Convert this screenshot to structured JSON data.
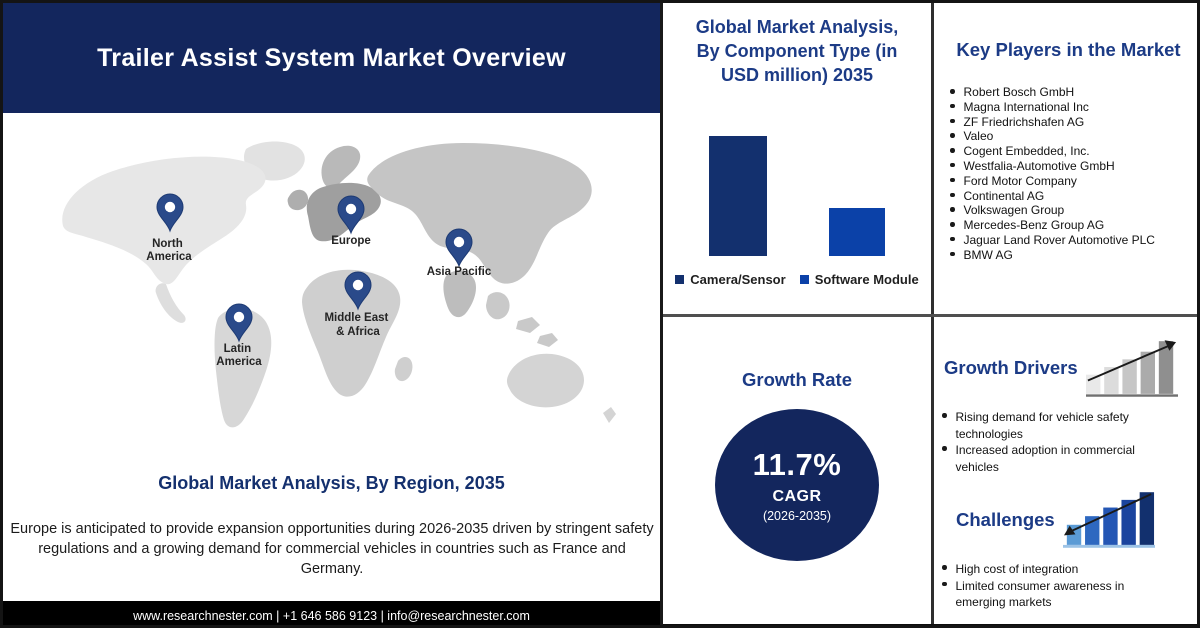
{
  "header": {
    "title": "Trailer Assist System Market Overview"
  },
  "map": {
    "regions": [
      {
        "line1": "North",
        "line2": "America"
      },
      {
        "line1": "Europe",
        "line2": ""
      },
      {
        "line1": "Asia Pacific",
        "line2": ""
      },
      {
        "line1": "Middle East",
        "line2": "& Africa"
      },
      {
        "line1": "Latin",
        "line2": "America"
      }
    ]
  },
  "region_section": {
    "heading": "Global Market Analysis, By Region, 2035",
    "paragraph": "Europe is anticipated to provide expansion opportunities during 2026-2035 driven by stringent safety regulations and a growing demand for commercial vehicles in countries such as France and Germany."
  },
  "footer": {
    "text": "www.researchnester.com | +1 646 586 9123 | info@researchnester.com"
  },
  "component_panel": {
    "title_lines": [
      "Global Market Analysis,",
      "By Component Type (in",
      "USD million) 2035"
    ]
  },
  "chart_data": {
    "type": "bar",
    "title": "Global Market Analysis, By Component Type (in USD million) 2035",
    "categories": [
      "Camera/Sensor",
      "Software Module"
    ],
    "values": [
      120,
      48
    ],
    "ylabel": "USD million",
    "axis_ticks_visible": false,
    "legend_position": "bottom",
    "colors": [
      "#13306e",
      "#0b41a8"
    ]
  },
  "growth_rate": {
    "heading": "Growth Rate",
    "value": "11.7%",
    "label": "CAGR",
    "period": "(2026-2035)"
  },
  "key_players": {
    "heading": "Key Players in the Market",
    "items": [
      "Robert Bosch GmbH",
      "Magna International Inc",
      "ZF Friedrichshafen AG",
      "Valeo",
      "Cogent Embedded, Inc.",
      "Westfalia-Automotive GmbH",
      "Ford Motor Company",
      "Continental AG",
      "Volkswagen Group",
      "Mercedes-Benz Group AG",
      "Jaguar Land Rover Automotive PLC",
      "BMW AG"
    ]
  },
  "drivers": {
    "heading": "Growth Drivers",
    "items": [
      "Rising demand for vehicle safety technologies",
      "Increased adoption in commercial vehicles"
    ]
  },
  "challenges": {
    "heading": "Challenges",
    "items": [
      "High cost of integration",
      "Limited consumer awareness in emerging markets"
    ]
  },
  "colors": {
    "header_bg": "#13265d",
    "heading_blue": "#1c3b86",
    "pin_blue": "#2a4a8a",
    "growth_circle_bg": "#13265d",
    "footer_bg": "#000000"
  }
}
